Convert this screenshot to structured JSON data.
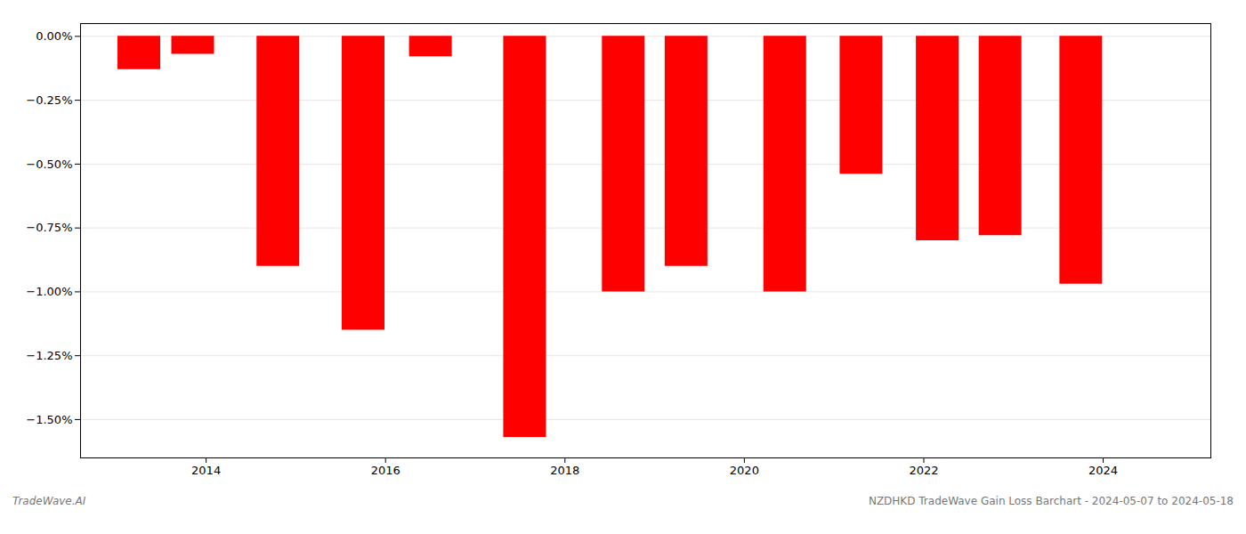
{
  "chart_data": {
    "type": "bar",
    "x": [
      2013.25,
      2013.85,
      2014.8,
      2015.75,
      2016.5,
      2017.55,
      2018.65,
      2019.35,
      2020.45,
      2021.3,
      2022.15,
      2022.85,
      2023.75
    ],
    "values": [
      -0.13,
      -0.07,
      -0.9,
      -1.15,
      -0.08,
      -1.57,
      -1.0,
      -0.9,
      -1.0,
      -0.54,
      -0.8,
      -0.78,
      -0.97
    ],
    "color": "#ff0000",
    "xlim": [
      2012.6,
      2025.2
    ],
    "xticks": [
      2014,
      2016,
      2018,
      2020,
      2022,
      2024
    ],
    "ylim": [
      -1.65,
      0.05
    ],
    "yticks": [
      {
        "value": 0.0,
        "label": "0.00%"
      },
      {
        "value": -0.25,
        "label": "−0.25%"
      },
      {
        "value": -0.5,
        "label": "−0.50%"
      },
      {
        "value": -0.75,
        "label": "−0.75%"
      },
      {
        "value": -1.0,
        "label": "−1.00%"
      },
      {
        "value": -1.25,
        "label": "−1.25%"
      },
      {
        "value": -1.5,
        "label": "−1.50%"
      }
    ],
    "grid": true,
    "annotations": [
      "TradeWave.AI",
      "NZDHKD TradeWave Gain Loss Barchart - 2024-05-07 to 2024-05-18"
    ]
  }
}
